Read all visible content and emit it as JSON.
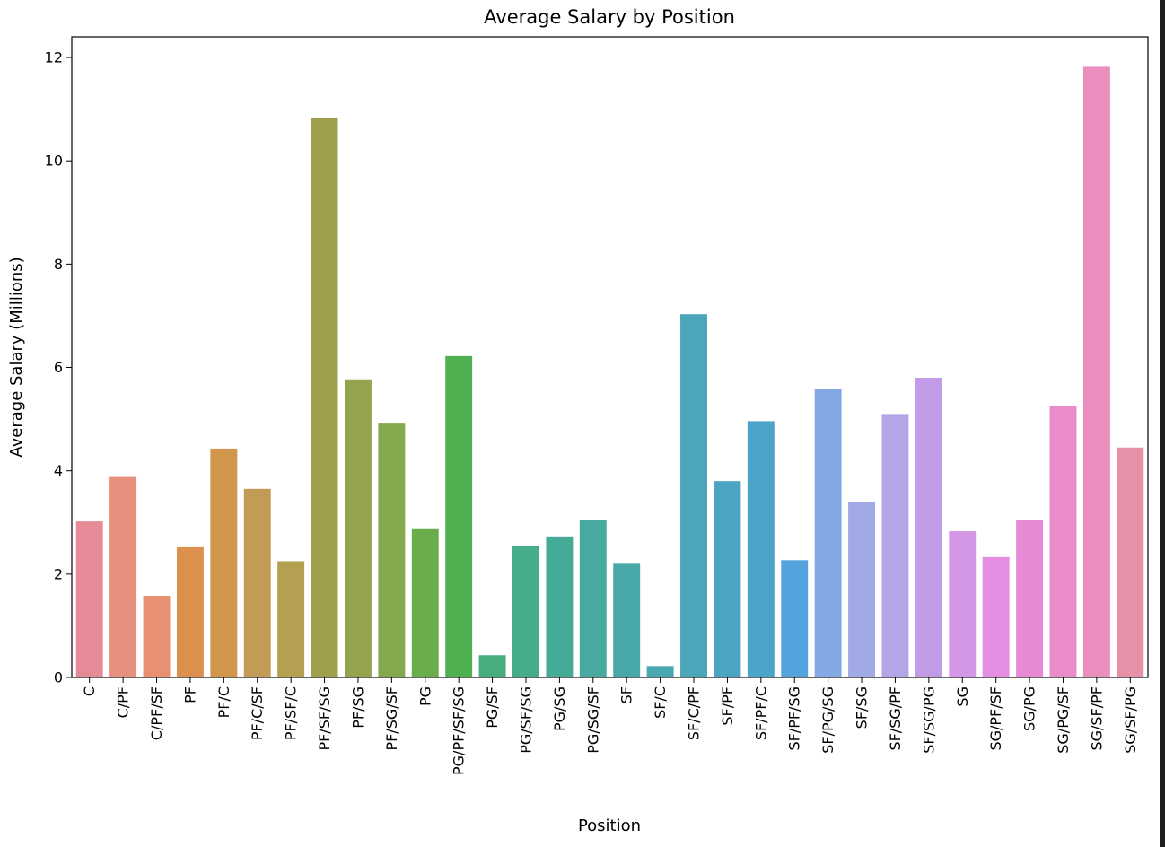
{
  "chart_data": {
    "type": "bar",
    "title": "Average Salary by Position",
    "xlabel": "Position",
    "ylabel": "Average Salary (Millions)",
    "ylim": [
      0,
      12.4
    ],
    "yticks": [
      0,
      2,
      4,
      6,
      8,
      10,
      12
    ],
    "grid": false,
    "legend": "none",
    "categories": [
      "C",
      "C/PF",
      "C/PF/SF",
      "PF",
      "PF/C",
      "PF/C/SF",
      "PF/SF/C",
      "PF/SF/SG",
      "PF/SG",
      "PF/SG/SF",
      "PG",
      "PG/PF/SF/SG",
      "PG/SF",
      "PG/SF/SG",
      "PG/SG",
      "PG/SG/SF",
      "SF",
      "SF/C",
      "SF/C/PF",
      "SF/PF",
      "SF/PF/C",
      "SF/PF/SG",
      "SF/PG/SG",
      "SF/SG",
      "SF/SG/PF",
      "SF/SG/PG",
      "SG",
      "SG/PF/SF",
      "SG/PG",
      "SG/PG/SF",
      "SG/SF/PF",
      "SG/SF/PG"
    ],
    "values": [
      3.02,
      3.88,
      1.58,
      2.52,
      4.43,
      3.65,
      2.25,
      10.82,
      5.77,
      4.93,
      2.87,
      6.22,
      0.43,
      2.55,
      2.73,
      3.05,
      2.2,
      0.22,
      7.03,
      3.8,
      4.96,
      2.27,
      5.58,
      3.4,
      5.1,
      5.8,
      2.83,
      2.33,
      3.05,
      5.25,
      11.82,
      4.45
    ],
    "colors": [
      "#e58a97",
      "#e8907e",
      "#e79172",
      "#dd8f4c",
      "#d1964c",
      "#c29b56",
      "#b3a050",
      "#a0a04c",
      "#94a44c",
      "#84a84c",
      "#6aad4b",
      "#4eb051",
      "#47ad7c",
      "#46ac8b",
      "#46ab96",
      "#47a9a0",
      "#48a8a8",
      "#49a7b1",
      "#4aa6b8",
      "#4ba5c0",
      "#4ca4c9",
      "#54a3dc",
      "#83a8e4",
      "#a1a9e6",
      "#b3a5e7",
      "#c29be7",
      "#d397e5",
      "#e38ee1",
      "#e889d5",
      "#e98cc8",
      "#ea8ebd",
      "#e691a8"
    ]
  }
}
